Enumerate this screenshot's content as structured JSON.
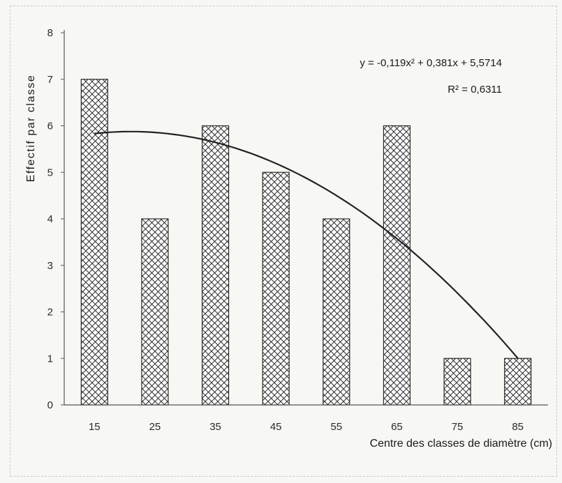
{
  "chart_data": {
    "type": "bar",
    "title": "",
    "xlabel": "Centre des classes de diamètre (cm)",
    "ylabel": "Effectif par classe",
    "categories": [
      "15",
      "25",
      "35",
      "45",
      "55",
      "65",
      "75",
      "85"
    ],
    "values": [
      7,
      4,
      6,
      5,
      4,
      6,
      1,
      1
    ],
    "ylim": [
      0,
      8
    ],
    "yticks": [
      "0",
      "1",
      "2",
      "3",
      "4",
      "5",
      "6",
      "7",
      "8"
    ],
    "grid": false,
    "bar_fill": "crosshatch",
    "trendline": {
      "type": "polynomial",
      "order": 2,
      "equation_label": "y = -0,119x² + 0,381x + 5,5714",
      "r2_label": "R² = 0,6311",
      "coefficients": {
        "a": -0.119,
        "b": 0.381,
        "c": 5.5714
      }
    }
  }
}
